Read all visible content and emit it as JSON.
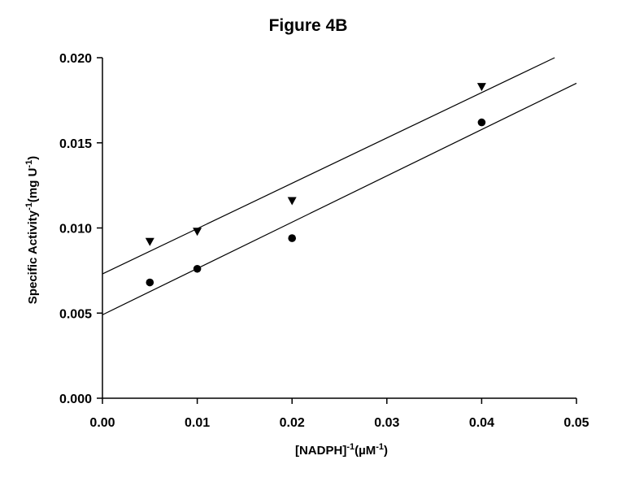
{
  "chart_data": {
    "type": "scatter",
    "title": "Figure 4B",
    "xlabel": {
      "parts": [
        {
          "text": "[NADPH]",
          "sup": false
        },
        {
          "text": "-1",
          "sup": true
        },
        {
          "text": "(µM",
          "sup": false
        },
        {
          "text": "-1",
          "sup": true
        },
        {
          "text": ")",
          "sup": false
        }
      ]
    },
    "ylabel": {
      "parts": [
        {
          "text": "Specific Activity",
          "sup": false
        },
        {
          "text": "-1",
          "sup": true
        },
        {
          "text": "(mg U",
          "sup": false
        },
        {
          "text": "-1",
          "sup": true
        },
        {
          "text": ")",
          "sup": false
        }
      ]
    },
    "xlim": [
      0,
      0.05
    ],
    "ylim": [
      0,
      0.02
    ],
    "x_ticks": [
      "0.00",
      "0.01",
      "0.02",
      "0.03",
      "0.04",
      "0.05"
    ],
    "y_ticks": [
      "0.000",
      "0.005",
      "0.010",
      "0.015",
      "0.020"
    ],
    "grid": false,
    "series": [
      {
        "marker": "triangle-down",
        "x": [
          0.005,
          0.01,
          0.02,
          0.04
        ],
        "y": [
          0.0092,
          0.0098,
          0.0116,
          0.0183
        ],
        "fit": {
          "x": [
            0,
            0.0477
          ],
          "y": [
            0.0073,
            0.02
          ]
        }
      },
      {
        "marker": "circle",
        "x": [
          0.005,
          0.01,
          0.02,
          0.04
        ],
        "y": [
          0.0068,
          0.0076,
          0.0094,
          0.0162
        ],
        "fit": {
          "x": [
            0,
            0.05
          ],
          "y": [
            0.0049,
            0.0185
          ]
        }
      }
    ]
  }
}
